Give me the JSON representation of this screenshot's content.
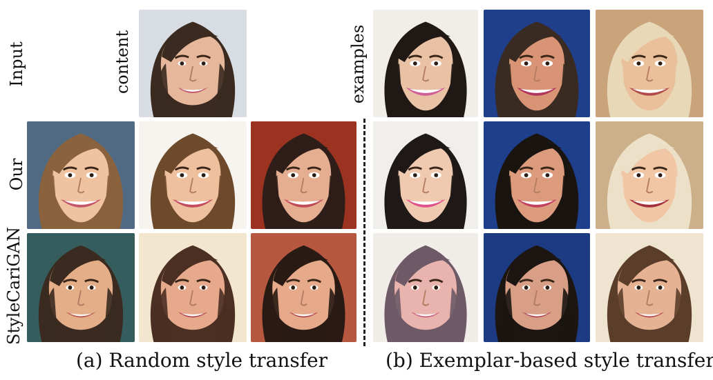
{
  "row_labels": {
    "input": "Input",
    "ours": "Our",
    "baseline": "StyleCariGAN"
  },
  "column_labels": {
    "content": "content",
    "examples": "examples"
  },
  "captions": {
    "left": "(a) Random style transfer",
    "right": "(b) Exemplar-based style transfer"
  },
  "tiles": [
    {
      "id": "content",
      "bg": "#d8dde4",
      "hair": "#3a2a1f",
      "skin": "#e6b79a",
      "lip": "#c0506a",
      "style": "photo"
    },
    {
      "id": "example-1",
      "bg": "#f1eee9",
      "hair": "#1f1814",
      "skin": "#e9c2a6",
      "lip": "#d05f97",
      "style": "caricature"
    },
    {
      "id": "example-2",
      "bg": "#1f3f8a",
      "hair": "#3a2b22",
      "skin": "#d89474",
      "lip": "#b0365d",
      "style": "caricature"
    },
    {
      "id": "example-3",
      "bg": "#c9a47a",
      "hair": "#e8d8b8",
      "skin": "#e9c09a",
      "lip": "#b14a4a",
      "style": "caricature"
    },
    {
      "id": "ours-random-1",
      "bg": "#4f6a82",
      "hair": "#8a623d",
      "skin": "#f0c3a0",
      "lip": "#c4566a",
      "style": "caricature"
    },
    {
      "id": "ours-random-2",
      "bg": "#f7f4ef",
      "hair": "#6e4a2c",
      "skin": "#efc09d",
      "lip": "#c44a5e",
      "style": "caricature"
    },
    {
      "id": "ours-random-3",
      "bg": "#9b3320",
      "hair": "#2e1d18",
      "skin": "#e6ae90",
      "lip": "#c04a55",
      "style": "caricature"
    },
    {
      "id": "ours-exemplar-1",
      "bg": "#f0efec",
      "hair": "#1e1816",
      "skin": "#efcab0",
      "lip": "#e0508a",
      "style": "caricature"
    },
    {
      "id": "ours-exemplar-2",
      "bg": "#1e3f8c",
      "hair": "#1a1410",
      "skin": "#dc9b7d",
      "lip": "#c2405e",
      "style": "caricature"
    },
    {
      "id": "ours-exemplar-3",
      "bg": "#ccb08a",
      "hair": "#ece0c8",
      "skin": "#f0c6a4",
      "lip": "#a4303e",
      "style": "caricature"
    },
    {
      "id": "cari-random-1",
      "bg": "#355d5d",
      "hair": "#3a2a20",
      "skin": "#e3ae88",
      "lip": "#b9584e",
      "style": "photo"
    },
    {
      "id": "cari-random-2",
      "bg": "#f3e6cf",
      "hair": "#4a2f22",
      "skin": "#e7a98c",
      "lip": "#b24a52",
      "style": "photo"
    },
    {
      "id": "cari-random-3",
      "bg": "#b5583f",
      "hair": "#2a1a14",
      "skin": "#e6aa8a",
      "lip": "#b44a50",
      "style": "photo"
    },
    {
      "id": "cari-exemplar-1",
      "bg": "#f0ece8",
      "hair": "#6e5a66",
      "skin": "#e9b4ae",
      "lip": "#c8607e",
      "style": "photo"
    },
    {
      "id": "cari-exemplar-2",
      "bg": "#1d3b82",
      "hair": "#1c1512",
      "skin": "#d99e86",
      "lip": "#b24a5a",
      "style": "photo"
    },
    {
      "id": "cari-exemplar-3",
      "bg": "#efe4cf",
      "hair": "#5b3e2a",
      "skin": "#e6b294",
      "lip": "#b64a4c",
      "style": "photo"
    }
  ]
}
